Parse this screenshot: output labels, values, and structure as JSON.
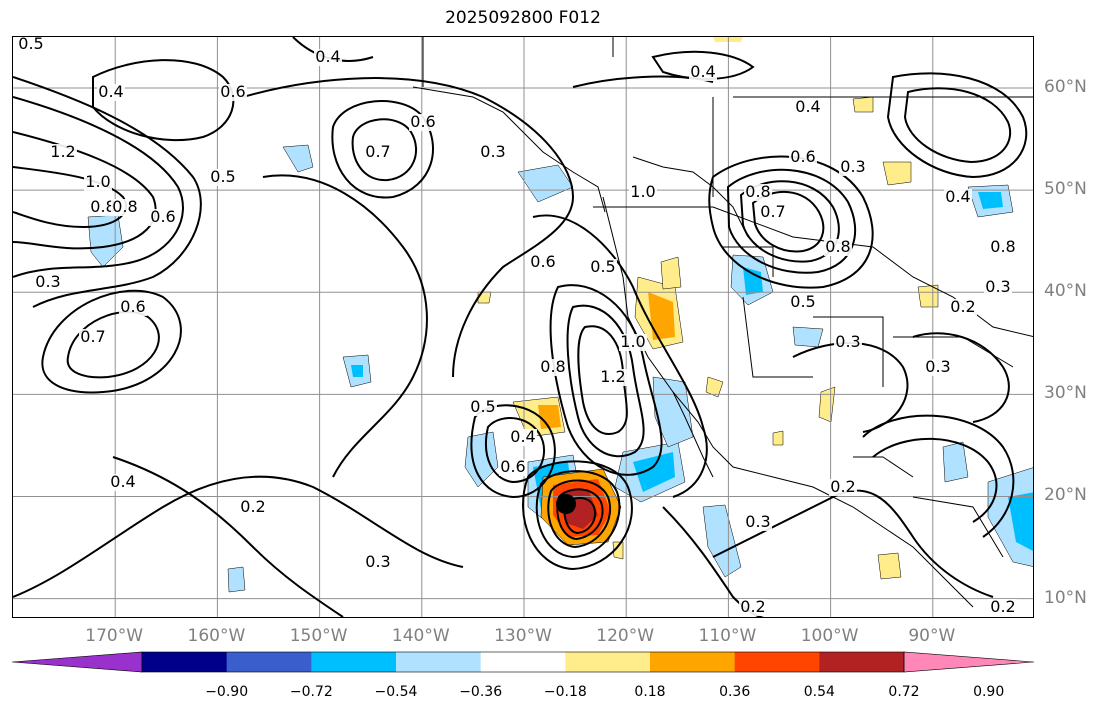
{
  "title": "2025092800 F012",
  "map": {
    "projection": "cylindrical",
    "lon_range": [
      -180,
      -80
    ],
    "lat_range": [
      8,
      65
    ],
    "lon_labels": [
      {
        "lon": -170,
        "text": "170°W"
      },
      {
        "lon": -160,
        "text": "160°W"
      },
      {
        "lon": -150,
        "text": "150°W"
      },
      {
        "lon": -140,
        "text": "140°W"
      },
      {
        "lon": -130,
        "text": "130°W"
      },
      {
        "lon": -120,
        "text": "120°W"
      },
      {
        "lon": -110,
        "text": "110°W"
      },
      {
        "lon": -100,
        "text": "100°W"
      },
      {
        "lon": -90,
        "text": "90°W"
      }
    ],
    "lat_labels": [
      {
        "lat": 60,
        "text": "60°N"
      },
      {
        "lat": 50,
        "text": "50°N"
      },
      {
        "lat": 40,
        "text": "40°N"
      },
      {
        "lat": 30,
        "text": "30°N"
      },
      {
        "lat": 20,
        "text": "20°N"
      },
      {
        "lat": 10,
        "text": "10°N"
      }
    ],
    "gridlines": true,
    "contour_labels": [
      "0.5",
      "0.4",
      "0.6",
      "0.8",
      "1.2",
      "1.0",
      "0.8",
      "0.6",
      "0.5",
      "0.3",
      "0.7",
      "0.6",
      "0.7",
      "0.6",
      "0.3",
      "0.4",
      "0.6",
      "0.5",
      "0.8",
      "1.0",
      "1.2",
      "0.5",
      "0.4",
      "0.6",
      "0.4",
      "0.2",
      "0.3",
      "0.4",
      "0.4",
      "0.6",
      "0.3",
      "1.0",
      "0.8",
      "0.7",
      "0.8",
      "0.5",
      "0.4",
      "0.2",
      "0.3",
      "0.3",
      "0.2",
      "0.3",
      "0.2",
      "0.8",
      "0.3",
      "0.2"
    ]
  },
  "colorbar": {
    "colors": [
      "#9932cc",
      "#00008b",
      "#3a5fcd",
      "#00bfff",
      "#b0e2ff",
      "#ffffff",
      "#ffec8b",
      "#ffa500",
      "#ff4500",
      "#b22222",
      "#ff88b8"
    ],
    "tick_labels": [
      "−0.90",
      "−0.72",
      "−0.54",
      "−0.36",
      "−0.18",
      "0.18",
      "0.36",
      "0.54",
      "0.72",
      "0.90"
    ]
  }
}
